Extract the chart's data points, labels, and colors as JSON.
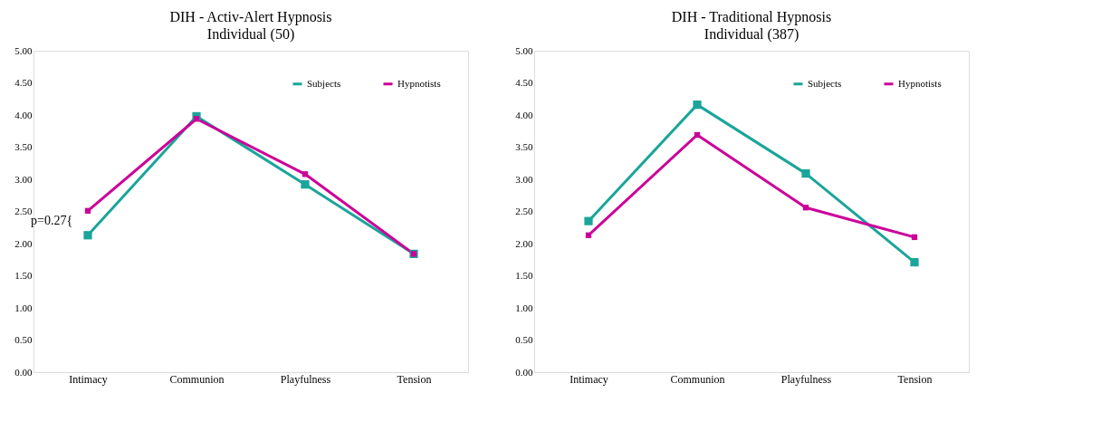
{
  "chart_data": [
    {
      "type": "line",
      "title": "DIH - Activ-Alert Hypnosis",
      "subtitle": "Individual (50)",
      "categories": [
        "Intimacy",
        "Communion",
        "Playfulness",
        "Tension"
      ],
      "series": [
        {
          "name": "Subjects",
          "color": "#1aa59a",
          "values": [
            2.13,
            3.98,
            2.92,
            1.84
          ]
        },
        {
          "name": "Hypnotists",
          "color": "#cc0099",
          "values": [
            2.51,
            3.94,
            3.08,
            1.84
          ]
        }
      ],
      "ylim": [
        0,
        5
      ],
      "yticks": [
        {
          "value": 0,
          "label": "0.00"
        },
        {
          "value": 0.5,
          "label": "0.50"
        },
        {
          "value": 1,
          "label": "1.00"
        },
        {
          "value": 1.5,
          "label": "1.50"
        },
        {
          "value": 2,
          "label": "2.00"
        },
        {
          "value": 2.5,
          "label": "2.50"
        },
        {
          "value": 3,
          "label": "3.00"
        },
        {
          "value": 3.5,
          "label": "3.50"
        },
        {
          "value": 4,
          "label": "4.00"
        },
        {
          "value": 4.5,
          "label": "4.50"
        },
        {
          "value": 5,
          "label": "5.00"
        }
      ],
      "annotations": [
        "p=0.27{"
      ],
      "legend": "top right",
      "marker": "square",
      "grid": false
    },
    {
      "type": "line",
      "title": "DIH - Traditional Hypnosis",
      "subtitle": "Individual (387)",
      "categories": [
        "Intimacy",
        "Communion",
        "Playfulness",
        "Tension"
      ],
      "series": [
        {
          "name": "Subjects",
          "color": "#1aa59a",
          "values": [
            2.35,
            4.16,
            3.09,
            1.71
          ]
        },
        {
          "name": "Hypnotists",
          "color": "#cc0099",
          "values": [
            2.13,
            3.69,
            2.56,
            2.1
          ]
        }
      ],
      "ylim": [
        0,
        5
      ],
      "yticks": [
        {
          "value": 0,
          "label": "0.00"
        },
        {
          "value": 0.5,
          "label": "0.50"
        },
        {
          "value": 1,
          "label": "1.00"
        },
        {
          "value": 1.5,
          "label": "1.50"
        },
        {
          "value": 2,
          "label": "2.00"
        },
        {
          "value": 2.5,
          "label": "2.50"
        },
        {
          "value": 3,
          "label": "3.00"
        },
        {
          "value": 3.5,
          "label": "3.50"
        },
        {
          "value": 4,
          "label": "4.00"
        },
        {
          "value": 4.5,
          "label": "4.50"
        },
        {
          "value": 5,
          "label": "5.00"
        }
      ],
      "legend": "top right",
      "marker": "square",
      "grid": false
    }
  ]
}
